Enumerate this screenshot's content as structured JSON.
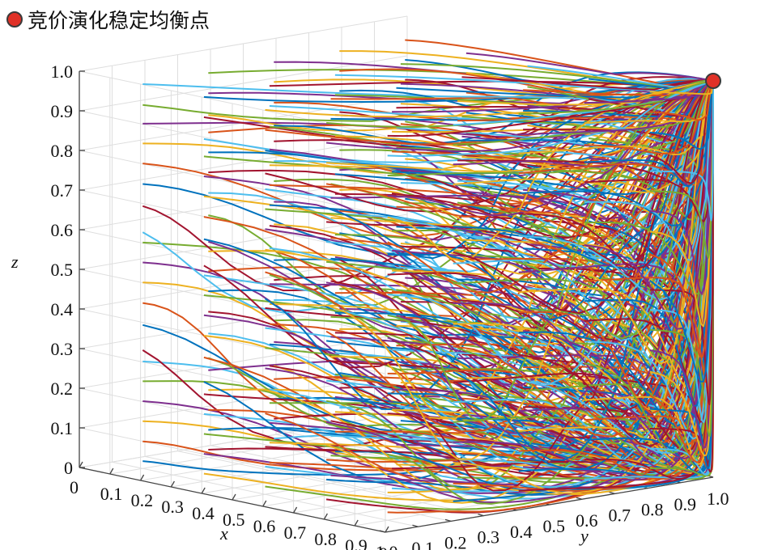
{
  "legend": {
    "label": "竞价演化稳定均衡点",
    "marker_color": "#e03127"
  },
  "chart_data": {
    "type": "line",
    "subtype": "3d-trajectories",
    "title": "",
    "xlabel": "x",
    "ylabel": "y",
    "zlabel": "z",
    "xlim": [
      0,
      1
    ],
    "ylim": [
      0,
      1
    ],
    "zlim": [
      0,
      1
    ],
    "x_ticks": [
      "0",
      "0.1",
      "0.2",
      "0.3",
      "0.4",
      "0.5",
      "0.6",
      "0.7",
      "0.8",
      "0.9",
      "1.0"
    ],
    "y_ticks": [
      "0",
      "0.1",
      "0.2",
      "0.3",
      "0.4",
      "0.5",
      "0.6",
      "0.7",
      "0.8",
      "0.9",
      "1.0"
    ],
    "z_ticks": [
      "0",
      "0.1",
      "0.2",
      "0.3",
      "0.4",
      "0.5",
      "0.6",
      "0.7",
      "0.8",
      "0.9",
      "1.0"
    ],
    "grid": true,
    "equilibrium_point": {
      "x": 1,
      "y": 1,
      "z": 1
    },
    "initial_grid_values": [
      0.1,
      0.3,
      0.5,
      0.7,
      0.9
    ],
    "series_colors": [
      "#0072bd",
      "#d95319",
      "#edb120",
      "#7e2f8e",
      "#77ac30",
      "#4dbeee",
      "#a2142f"
    ],
    "legend_position": "top-left"
  }
}
